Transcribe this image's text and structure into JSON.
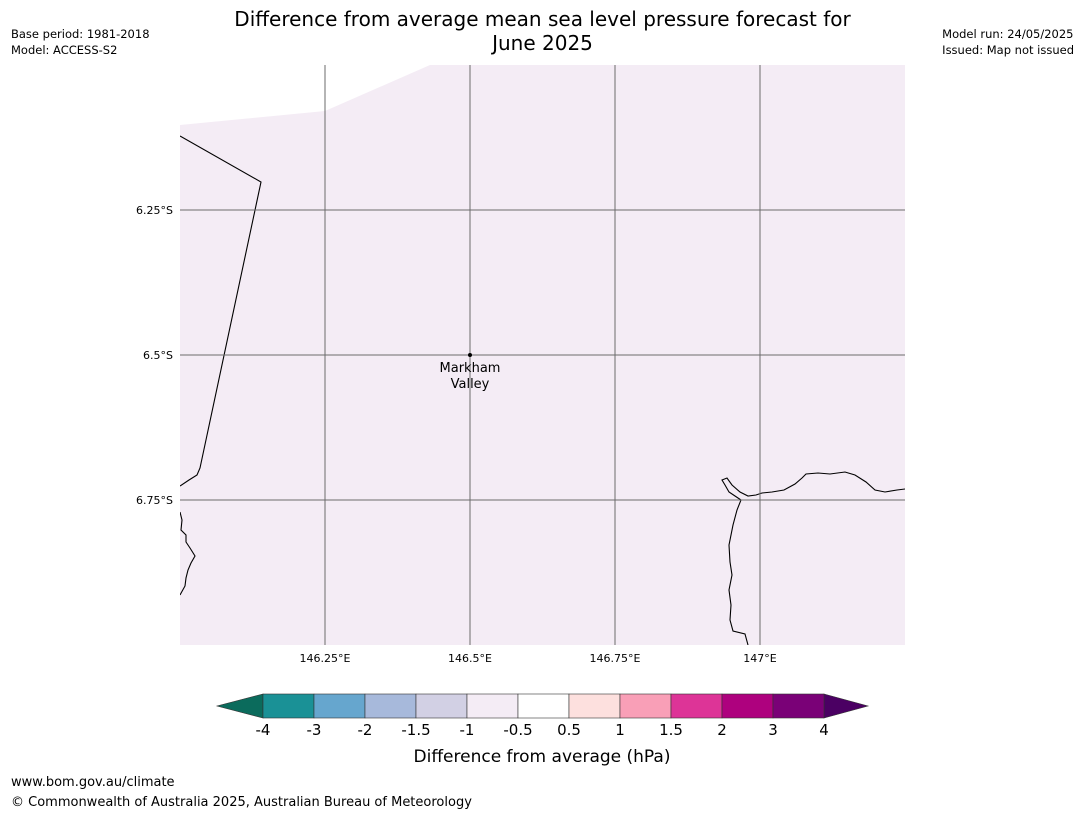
{
  "title": {
    "line1": "Difference from average mean sea level pressure forecast for",
    "line2": "June 2025"
  },
  "meta_left": {
    "base_period": "Base period: 1981-2018",
    "model": "Model: ACCESS-S2"
  },
  "meta_right": {
    "model_run": "Model run: 24/05/2025",
    "issued": "Issued: Map not issued"
  },
  "map": {
    "lon_range": [
      146.0,
      147.25
    ],
    "lat_range": [
      -6.0,
      -7.0
    ],
    "lon_ticks": [
      {
        "value": 146.25,
        "label": "146.25°E"
      },
      {
        "value": 146.5,
        "label": "146.5°E"
      },
      {
        "value": 146.75,
        "label": "146.75°E"
      },
      {
        "value": 147.0,
        "label": "147°E"
      }
    ],
    "lat_ticks": [
      {
        "value": -6.25,
        "label": "6.25°S"
      },
      {
        "value": -6.5,
        "label": "6.5°S"
      },
      {
        "value": -6.75,
        "label": "6.75°S"
      }
    ],
    "fill_color": "#f4ecf5",
    "place": {
      "name_line1": "Markham",
      "name_line2": "Valley",
      "lon": 146.5,
      "lat": -6.5
    }
  },
  "colorbar": {
    "label": "Difference from average (hPa)",
    "ticks": [
      "-4",
      "-3",
      "-2",
      "-1.5",
      "-1",
      "-0.5",
      "0.5",
      "1",
      "1.5",
      "2",
      "3",
      "4"
    ],
    "below_color": "#0b6b5c",
    "above_color": "#4b0063",
    "colors": [
      "#1a9196",
      "#66a6ce",
      "#a7b9db",
      "#d2d0e4",
      "#f4ecf5",
      "#ffffff",
      "#fde0de",
      "#f99fb7",
      "#dd3497",
      "#ae017e",
      "#7a0177"
    ]
  },
  "footer": {
    "url": "www.bom.gov.au/climate",
    "copyright": "© Commonwealth of Australia 2025, Australian Bureau of Meteorology"
  }
}
